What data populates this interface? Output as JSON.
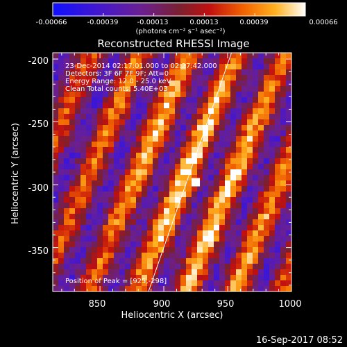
{
  "colorbar": {
    "tick_labels": [
      "-0.00066",
      "-0.00039",
      "-0.00013",
      "0.00013",
      "0.00039",
      "0.00066"
    ],
    "unit_label": "(photons cm⁻² s⁻¹ asec⁻²)",
    "min": -0.00066,
    "max": 0.00066
  },
  "plot": {
    "title": "Reconstructed RHESSI Image",
    "xlabel": "Heliocentric X (arcsec)",
    "ylabel": "Heliocentric Y (arcsec)",
    "x_ticks": [
      "850",
      "900",
      "950",
      "1000"
    ],
    "y_ticks": [
      "-200",
      "-250",
      "-300",
      "-350"
    ],
    "xlim": [
      813,
      1000
    ],
    "ylim": [
      -385,
      -195
    ],
    "info_lines": [
      "23-Dec-2014 02:17:01.000 to 02:27:42.000",
      "Detectors: 3F 6F 7F 9F; Att=0",
      "Energy Range: 12.0 - 25.0 keV",
      "Clean    Total counts: 5.40E+03"
    ],
    "peak_label": "Position of Peak = [925,-298]",
    "peak": {
      "x": 925,
      "y": -298
    },
    "limb_line": {
      "x1": 888,
      "y1": -385,
      "x2": 953,
      "y2": -195
    }
  },
  "footer": {
    "timestamp": "16-Sep-2017 08:52"
  },
  "colors": {
    "background": "#000000",
    "text": "#ffffff",
    "limb": "#ffffff"
  }
}
